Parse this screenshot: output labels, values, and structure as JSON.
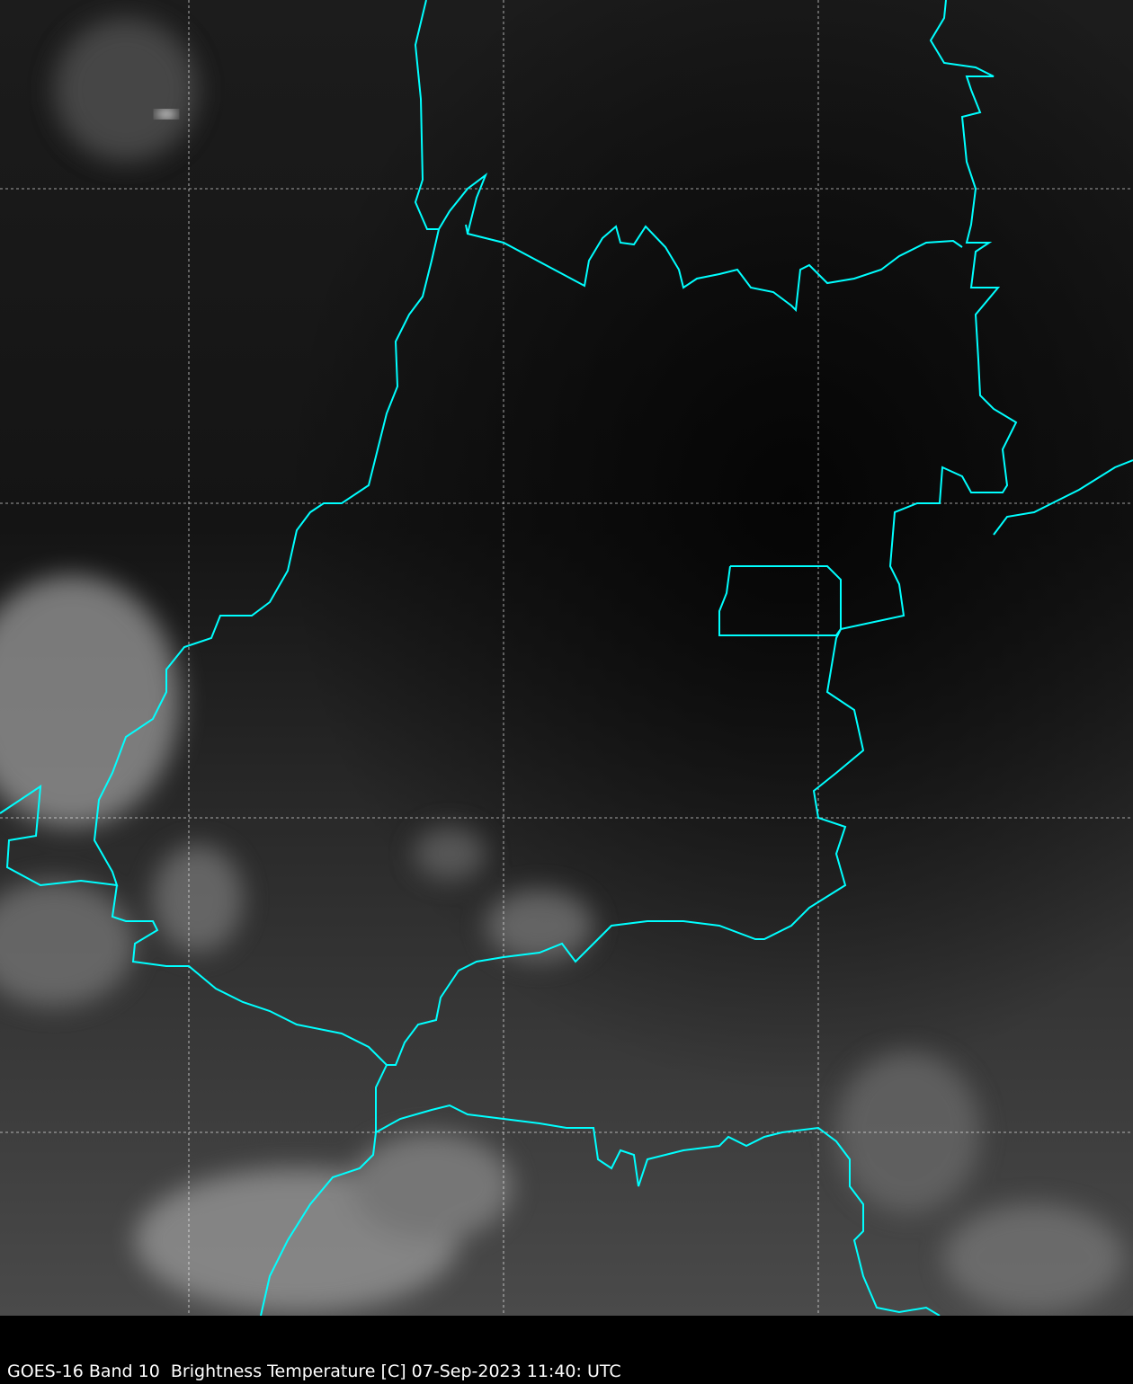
{
  "caption": "GOES-16 Band 10  Brightness Temperature [C] 07-Sep-2023 11:40: UTC",
  "colors": {
    "border": "#00ffff",
    "grid": "#ffffff",
    "background": "#000000"
  },
  "map": {
    "colormap": "grayscale",
    "gridlines": "dashed",
    "borders": "cyan"
  }
}
